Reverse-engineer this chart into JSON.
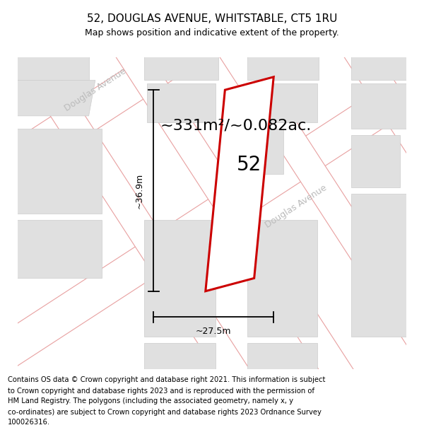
{
  "title": "52, DOUGLAS AVENUE, WHITSTABLE, CT5 1RU",
  "subtitle": "Map shows position and indicative extent of the property.",
  "area_label": "~331m²/~0.082ac.",
  "number_label": "52",
  "dim_height": "~36.9m",
  "dim_width": "~27.5m",
  "street_label_1": "Douglas Avenue",
  "street_label_2": "Douglas Avenue",
  "footer_lines": [
    "Contains OS data © Crown copyright and database right 2021. This information is subject",
    "to Crown copyright and database rights 2023 and is reproduced with the permission of",
    "HM Land Registry. The polygons (including the associated geometry, namely x, y",
    "co-ordinates) are subject to Crown copyright and database rights 2023 Ordnance Survey",
    "100026316."
  ],
  "map_bg": "#f2f2f2",
  "road_fill": "#ffffff",
  "road_stroke": "#e8a0a0",
  "building_fill": "#e0e0e0",
  "building_edge": "#cccccc",
  "property_stroke": "#cc0000",
  "property_fill": "#ffffff",
  "street_label_color": "#bbbbbb",
  "title_fontsize": 11,
  "subtitle_fontsize": 9,
  "area_label_fontsize": 16,
  "number_fontsize": 20,
  "footer_fontsize": 7.2,
  "dim_fontsize": 9
}
